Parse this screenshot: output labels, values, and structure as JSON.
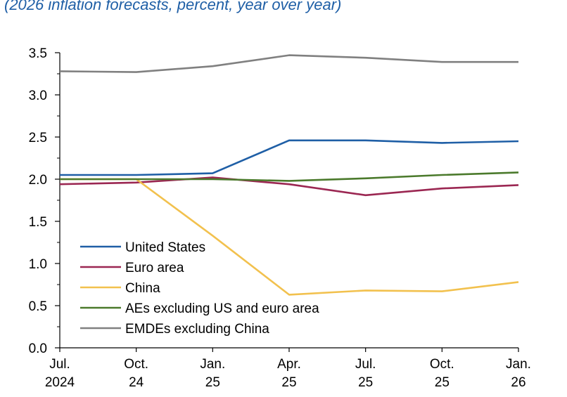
{
  "chart_data": {
    "type": "line",
    "title": "",
    "subtitle": "(2026 inflation forecasts, percent, year over year)",
    "xlabel": "",
    "ylabel": "",
    "ylim": [
      0,
      3.5
    ],
    "yticks": [
      "0.0",
      "0.5",
      "1.0",
      "1.5",
      "2.0",
      "2.5",
      "3.0",
      "3.5"
    ],
    "categories": [
      {
        "line1": "Jul.",
        "line2": "2024"
      },
      {
        "line1": "Oct.",
        "line2": "24"
      },
      {
        "line1": "Jan.",
        "line2": "25"
      },
      {
        "line1": "Apr.",
        "line2": "25"
      },
      {
        "line1": "Jul.",
        "line2": "25"
      },
      {
        "line1": "Oct.",
        "line2": "25"
      },
      {
        "line1": "Jan.",
        "line2": "26"
      }
    ],
    "legend_position": "lower-left",
    "grid": false,
    "series": [
      {
        "name": "United States",
        "color": "#1f5fa6",
        "values": [
          2.05,
          2.05,
          2.07,
          2.46,
          2.46,
          2.43,
          2.45
        ]
      },
      {
        "name": "Euro area",
        "color": "#9b2752",
        "values": [
          1.94,
          1.96,
          2.02,
          1.94,
          1.81,
          1.89,
          1.93
        ]
      },
      {
        "name": "China",
        "color": "#f2c14e",
        "values": [
          2.0,
          2.0,
          1.33,
          0.63,
          0.68,
          0.67,
          0.78
        ]
      },
      {
        "name": "AEs excluding US and euro area",
        "color": "#4b7a2c",
        "values": [
          2.0,
          2.0,
          2.0,
          1.98,
          2.01,
          2.05,
          2.08
        ]
      },
      {
        "name": "EMDEs excluding China",
        "color": "#808080",
        "values": [
          3.28,
          3.27,
          3.34,
          3.47,
          3.44,
          3.39,
          3.39
        ]
      }
    ]
  }
}
